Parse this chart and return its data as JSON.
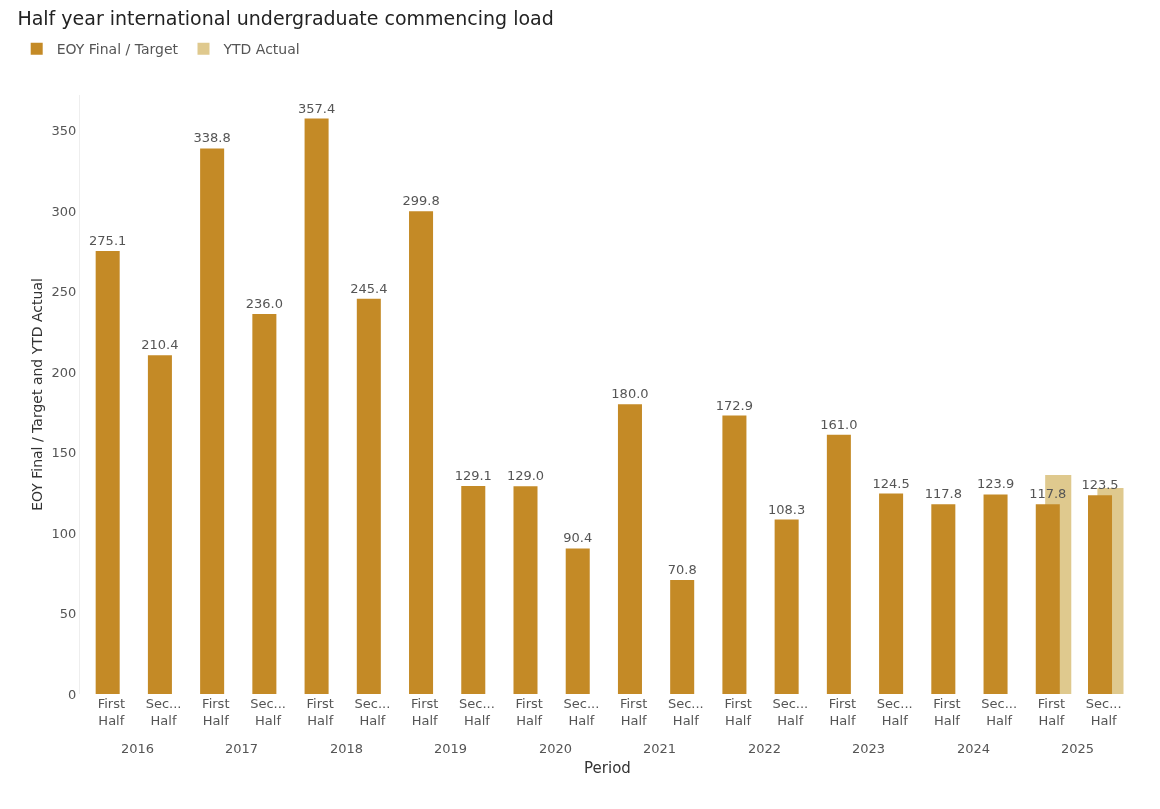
{
  "chart_data": {
    "type": "bar",
    "title": "Half year international undergraduate commencing load",
    "xlabel": "Period",
    "ylabel": "EOY Final / Target and YTD Actual",
    "categories": [
      "First Half",
      "Sec... Half",
      "First Half",
      "Sec... Half",
      "First Half",
      "Sec... Half",
      "First Half",
      "Sec... Half",
      "First Half",
      "Sec... Half",
      "First Half",
      "Sec... Half",
      "First Half",
      "Sec... Half",
      "First Half",
      "Sec... Half",
      "First Half",
      "Sec... Half",
      "First Half",
      "Sec... Half"
    ],
    "annotations": [
      "2016",
      "2017",
      "2018",
      "2019",
      "2020",
      "2021",
      "2022",
      "2023",
      "2024",
      "2025"
    ],
    "series": [
      {
        "name": "EOY Final / Target",
        "color": "#c48a26",
        "values": [
          275.1,
          210.4,
          338.8,
          236.0,
          357.4,
          245.4,
          299.8,
          129.1,
          129.0,
          90.4,
          180.0,
          70.8,
          172.9,
          108.3,
          161.0,
          124.5,
          117.8,
          123.9,
          117.8,
          123.5
        ],
        "value_labels": [
          "275.1",
          "210.4",
          "338.8",
          "236.0",
          "357.4",
          "245.4",
          "299.8",
          "129.1",
          "129.0",
          "90.4",
          "180.0",
          "70.8",
          "172.9",
          "108.3",
          "161.0",
          "124.5",
          "117.8",
          "123.9",
          "117.8",
          "123.5"
        ]
      },
      {
        "name": "YTD Actual",
        "color": "#dfc98e",
        "values": [
          null,
          null,
          null,
          null,
          null,
          null,
          null,
          null,
          null,
          null,
          null,
          null,
          null,
          null,
          null,
          null,
          null,
          null,
          136,
          128
        ]
      }
    ],
    "ylim": [
      0,
      372
    ],
    "yticks": [
      0,
      50,
      100,
      150,
      200,
      250,
      300,
      350
    ],
    "grid": false,
    "legend": "top left"
  }
}
